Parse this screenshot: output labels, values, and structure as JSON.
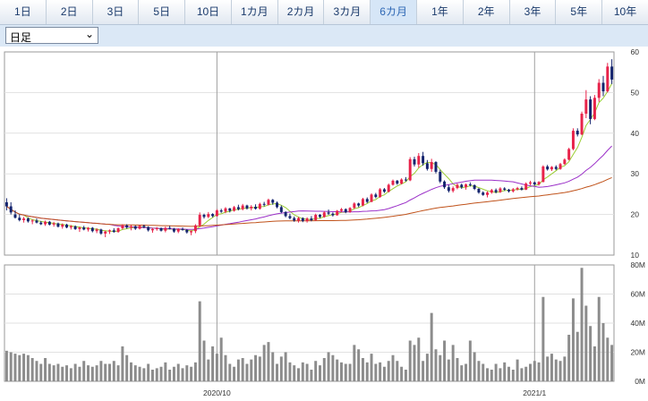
{
  "tabs": [
    {
      "label": "1日"
    },
    {
      "label": "2日"
    },
    {
      "label": "3日"
    },
    {
      "label": "5日"
    },
    {
      "label": "10日"
    },
    {
      "label": "1カ月"
    },
    {
      "label": "2カ月"
    },
    {
      "label": "3カ月"
    },
    {
      "label": "6カ月",
      "active": true
    },
    {
      "label": "1年"
    },
    {
      "label": "2年"
    },
    {
      "label": "3年"
    },
    {
      "label": "5年"
    },
    {
      "label": "10年"
    }
  ],
  "period_select": {
    "value": "日足"
  },
  "colors": {
    "up": "#e8234a",
    "down": "#14246e",
    "volume": "#8c8c8c",
    "ma_short": "#9acd32",
    "ma_mid": "#9b30c8",
    "ma_long": "#c0521a"
  },
  "chart_data": {
    "type": "candlestick",
    "price_axis": {
      "min": 10,
      "max": 60,
      "ticks": [
        "10",
        "20",
        "30",
        "40",
        "50",
        "60"
      ]
    },
    "volume_axis": {
      "min": 0,
      "max": 80,
      "unit": "M",
      "ticks": [
        "0M",
        "20M",
        "40M",
        "60M",
        "80M"
      ]
    },
    "x_labels": [
      {
        "label": "2020/10",
        "index": 49
      },
      {
        "label": "2021/1",
        "index": 123
      }
    ],
    "candles": [
      [
        23,
        24,
        21,
        22,
        21
      ],
      [
        22,
        23,
        20,
        20.5,
        20
      ],
      [
        20,
        21,
        19,
        19.2,
        19
      ],
      [
        19.2,
        20,
        18.3,
        18.6,
        18
      ],
      [
        18.6,
        19.4,
        18,
        19,
        19
      ],
      [
        19,
        19.3,
        18,
        18.3,
        18
      ],
      [
        18.3,
        18.8,
        17.6,
        18.5,
        16
      ],
      [
        18.5,
        19,
        17.8,
        18,
        14
      ],
      [
        18,
        18.4,
        17.4,
        17.6,
        12
      ],
      [
        17.6,
        18.5,
        17.2,
        18.2,
        16
      ],
      [
        18.2,
        18.4,
        17.3,
        17.5,
        12
      ],
      [
        17.5,
        18.2,
        17,
        17.8,
        11
      ],
      [
        17.8,
        18,
        16.8,
        17,
        12
      ],
      [
        17,
        17.8,
        16.5,
        17.5,
        10
      ],
      [
        17.5,
        17.7,
        16.6,
        16.8,
        11
      ],
      [
        16.8,
        17.4,
        16.3,
        17.1,
        9
      ],
      [
        17.1,
        17.3,
        16.2,
        16.4,
        12
      ],
      [
        16.4,
        17,
        15.7,
        16.8,
        10
      ],
      [
        16.8,
        17.2,
        16.1,
        16.3,
        14
      ],
      [
        16.3,
        16.9,
        15.8,
        16.7,
        11
      ],
      [
        16.7,
        16.9,
        15.6,
        15.9,
        10
      ],
      [
        15.9,
        16.6,
        15.4,
        16.3,
        11
      ],
      [
        16.3,
        16.5,
        15,
        15.3,
        14
      ],
      [
        15.3,
        16,
        14.4,
        15.8,
        12
      ],
      [
        15.8,
        16.3,
        15.2,
        16.1,
        12
      ],
      [
        16.1,
        16.6,
        15.5,
        15.7,
        14
      ],
      [
        15.7,
        16.8,
        15.5,
        16.6,
        11
      ],
      [
        16.6,
        17.6,
        16.3,
        17.3,
        24
      ],
      [
        17.3,
        17.6,
        16.5,
        16.8,
        18
      ],
      [
        16.8,
        17.4,
        16.1,
        17.1,
        13
      ],
      [
        17.1,
        17.3,
        16.2,
        16.5,
        11
      ],
      [
        16.5,
        17.5,
        16.3,
        17.2,
        10
      ],
      [
        17.2,
        17.5,
        16.6,
        16.9,
        9
      ],
      [
        16.9,
        17.1,
        15.8,
        16.1,
        12
      ],
      [
        16.1,
        16.7,
        15.5,
        16.4,
        8
      ],
      [
        16.4,
        16.9,
        16,
        16.6,
        9
      ],
      [
        16.6,
        16.8,
        15.8,
        16,
        10
      ],
      [
        16,
        17,
        15.6,
        16.7,
        13
      ],
      [
        16.7,
        17.2,
        16.3,
        16.5,
        8
      ],
      [
        16.5,
        16.7,
        15.5,
        15.8,
        10
      ],
      [
        15.8,
        16.6,
        15.4,
        16.4,
        12
      ],
      [
        16.4,
        16.8,
        16,
        16.2,
        9
      ],
      [
        16.2,
        16.4,
        15.3,
        15.6,
        11
      ],
      [
        15.6,
        16.1,
        14.9,
        15.9,
        10
      ],
      [
        15.9,
        17.6,
        15.4,
        17.3,
        13
      ],
      [
        17.3,
        20.5,
        17,
        19.9,
        55
      ],
      [
        19.9,
        20.2,
        19,
        19.4,
        28
      ],
      [
        19.4,
        20.6,
        19.1,
        20.1,
        15
      ],
      [
        20.1,
        20.3,
        19.3,
        19.6,
        24
      ],
      [
        19.6,
        21.3,
        19.5,
        21,
        19
      ],
      [
        21,
        21.4,
        20.4,
        20.7,
        30
      ],
      [
        20.7,
        21.8,
        20.3,
        21.5,
        18
      ],
      [
        21.5,
        21.6,
        20.5,
        20.9,
        12
      ],
      [
        20.9,
        22.1,
        20.7,
        21.8,
        10
      ],
      [
        21.8,
        22.4,
        21,
        21.3,
        15
      ],
      [
        21.3,
        22.6,
        21,
        22.2,
        16
      ],
      [
        22.2,
        22.4,
        21.2,
        21.5,
        12
      ],
      [
        21.5,
        22.3,
        21,
        21.9,
        15
      ],
      [
        21.9,
        22.5,
        21.2,
        21.4,
        18
      ],
      [
        21.4,
        22.9,
        21.2,
        22.6,
        17
      ],
      [
        22.6,
        23.1,
        22,
        22.4,
        25
      ],
      [
        22.4,
        23.9,
        22.2,
        23.6,
        27
      ],
      [
        23.6,
        23.8,
        22.4,
        22.9,
        20
      ],
      [
        22.9,
        23.2,
        21.5,
        21.8,
        12
      ],
      [
        21.8,
        22.2,
        20.3,
        20.6,
        17
      ],
      [
        20.6,
        20.8,
        19.3,
        19.6,
        20
      ],
      [
        19.6,
        20.2,
        18.8,
        19.1,
        13
      ],
      [
        19.1,
        19.5,
        18.2,
        18.5,
        11
      ],
      [
        18.5,
        19.4,
        18,
        19.1,
        9
      ],
      [
        19.1,
        19.3,
        18.1,
        18.4,
        13
      ],
      [
        18.4,
        19.3,
        18,
        19,
        12
      ],
      [
        19,
        19.6,
        18.3,
        18.6,
        8
      ],
      [
        18.6,
        20.2,
        18.4,
        19.9,
        14
      ],
      [
        19.9,
        20.1,
        19.1,
        19.4,
        11
      ],
      [
        19.4,
        20.8,
        19.2,
        20.5,
        16
      ],
      [
        20.5,
        21.2,
        19.9,
        20.2,
        20
      ],
      [
        20.2,
        20.5,
        19.5,
        19.8,
        18
      ],
      [
        19.8,
        21.1,
        19.7,
        20.9,
        15
      ],
      [
        20.9,
        21.6,
        20.5,
        21.3,
        13
      ],
      [
        21.3,
        21.5,
        20.3,
        20.6,
        12
      ],
      [
        20.6,
        21.8,
        20.4,
        21.6,
        12
      ],
      [
        21.6,
        23,
        21.4,
        22.7,
        25
      ],
      [
        22.7,
        22.9,
        21.8,
        22.2,
        22
      ],
      [
        22.2,
        24.1,
        22,
        23.8,
        16
      ],
      [
        23.8,
        24.2,
        22.8,
        23.1,
        13
      ],
      [
        23.1,
        25.2,
        23,
        24.9,
        19
      ],
      [
        24.9,
        25.3,
        24,
        24.3,
        12
      ],
      [
        24.3,
        26.5,
        24.1,
        26.2,
        13
      ],
      [
        26.2,
        26.5,
        25.3,
        25.6,
        10
      ],
      [
        25.6,
        27.6,
        25.4,
        27.3,
        14
      ],
      [
        27.3,
        28.6,
        27.1,
        28.3,
        18
      ],
      [
        28.3,
        28.5,
        27.3,
        27.6,
        14
      ],
      [
        27.6,
        28.9,
        27.4,
        28.6,
        10
      ],
      [
        28.6,
        29.2,
        28.1,
        28.4,
        8
      ],
      [
        28.4,
        34.1,
        28.2,
        33.6,
        28
      ],
      [
        33.6,
        34.2,
        31.8,
        32.3,
        25
      ],
      [
        32.3,
        35.1,
        31.5,
        34.4,
        30
      ],
      [
        34.4,
        35.4,
        32,
        32.6,
        14
      ],
      [
        32.6,
        33.4,
        30.8,
        31.2,
        19
      ],
      [
        31.2,
        33.7,
        30.5,
        32.9,
        47
      ],
      [
        32.9,
        33.1,
        30.1,
        30.5,
        22
      ],
      [
        30.5,
        31,
        27.7,
        28.1,
        18
      ],
      [
        28.1,
        28.4,
        26.3,
        26.7,
        28
      ],
      [
        26.7,
        27.3,
        25.4,
        25.8,
        15
      ],
      [
        25.8,
        26.9,
        25.4,
        26.5,
        25
      ],
      [
        26.5,
        27.6,
        26.2,
        27.3,
        16
      ],
      [
        27.3,
        27.6,
        26.3,
        26.7,
        11
      ],
      [
        26.7,
        27.6,
        26.1,
        27.4,
        12
      ],
      [
        27.4,
        27.9,
        26.9,
        27.2,
        28
      ],
      [
        27.2,
        27.4,
        26,
        26.3,
        20
      ],
      [
        26.3,
        26.5,
        25.1,
        25.4,
        14
      ],
      [
        25.4,
        25.7,
        24.6,
        24.8,
        12
      ],
      [
        24.8,
        25.7,
        24.2,
        25.4,
        9
      ],
      [
        25.4,
        26.3,
        25.1,
        26,
        8
      ],
      [
        26,
        26.4,
        25.2,
        25.5,
        12
      ],
      [
        25.5,
        26.7,
        25.3,
        26.4,
        9
      ],
      [
        26.4,
        26.7,
        25.8,
        26.1,
        13
      ],
      [
        26.1,
        26.3,
        25.4,
        25.7,
        10
      ],
      [
        25.7,
        26.5,
        25.4,
        26.2,
        8
      ],
      [
        26.2,
        26.8,
        25.9,
        26.5,
        15
      ],
      [
        26.5,
        26.9,
        25.9,
        26.1,
        9
      ],
      [
        26.1,
        27.9,
        26,
        27.6,
        10
      ],
      [
        27.6,
        28.3,
        27.2,
        27.9,
        12
      ],
      [
        27.9,
        28.1,
        27.1,
        27.4,
        14
      ],
      [
        27.4,
        28.2,
        27.1,
        28,
        13
      ],
      [
        28,
        32.1,
        27.9,
        31.8,
        58
      ],
      [
        31.8,
        32.2,
        30.8,
        31.1,
        17
      ],
      [
        31.1,
        31.9,
        30.7,
        31.7,
        19
      ],
      [
        31.7,
        32.1,
        30.9,
        31.2,
        15
      ],
      [
        31.2,
        32.7,
        31,
        32.4,
        14
      ],
      [
        32.4,
        33.8,
        32.2,
        33.5,
        17
      ],
      [
        33.5,
        36.4,
        33.3,
        36.1,
        32
      ],
      [
        36.1,
        41.2,
        35.8,
        40.6,
        57
      ],
      [
        40.6,
        41.2,
        39.2,
        39.7,
        34
      ],
      [
        39.7,
        45.3,
        39.5,
        44.8,
        78
      ],
      [
        44.8,
        50.6,
        43.7,
        48.3,
        52
      ],
      [
        48.3,
        49.1,
        42.2,
        43.5,
        38
      ],
      [
        43.5,
        49.4,
        43.2,
        48.7,
        24
      ],
      [
        48.7,
        53.3,
        47.7,
        52.4,
        58
      ],
      [
        52.4,
        54.1,
        49.1,
        50.3,
        40
      ],
      [
        50.3,
        57.3,
        50,
        56.4,
        30
      ],
      [
        56.4,
        58.2,
        52.1,
        53.2,
        25
      ]
    ]
  }
}
